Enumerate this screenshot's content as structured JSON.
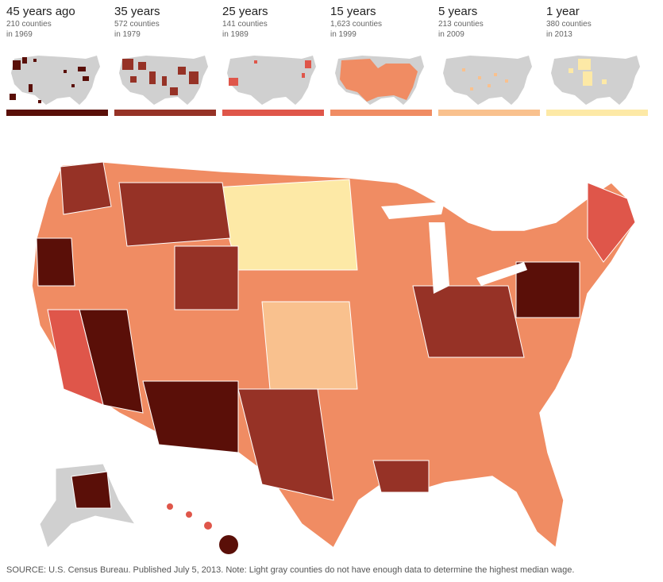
{
  "legend": {
    "items": [
      {
        "title": "45 years ago",
        "count": "210 counties",
        "year": "in 1969",
        "color": "#5a0f08"
      },
      {
        "title": "35 years",
        "count": "572 counties",
        "year": "in 1979",
        "color": "#963226"
      },
      {
        "title": "25 years",
        "count": "141 counties",
        "year": "in 1989",
        "color": "#df564a"
      },
      {
        "title": "15 years",
        "count": "1,623 counties",
        "year": "in 1999",
        "color": "#f08c63"
      },
      {
        "title": "5 years",
        "count": "213 counties",
        "year": "in 2009",
        "color": "#f9c18e"
      },
      {
        "title": "1 year",
        "count": "380 counties",
        "year": "in 2013",
        "color": "#fde9a6"
      }
    ]
  },
  "colors": {
    "no_data": "#d0d0d0",
    "border": "#ffffff"
  },
  "source": "SOURCE: U.S. Census Bureau. Published July 5, 2013. Note: Light gray counties do not have enough data to determine the highest median wage."
}
